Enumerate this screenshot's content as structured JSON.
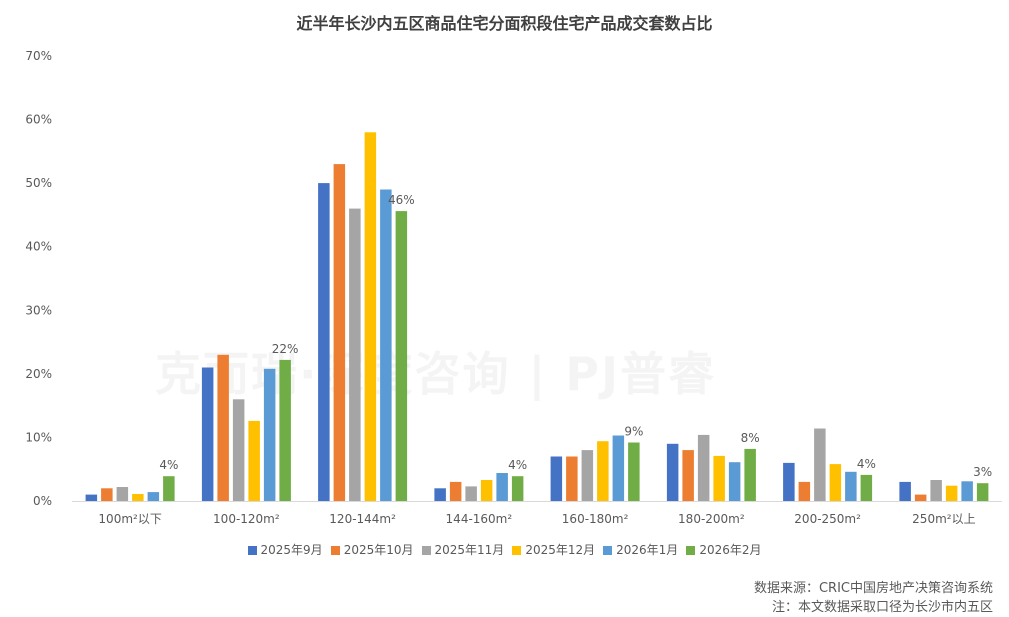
{
  "title": "近半年长沙内五区商品住宅分面积段住宅产品成交套数占比",
  "watermark": "克而瑞·深度咨询 | PJ普睿",
  "source": {
    "line1": "数据来源：CRIC中国房地产决策咨询系统",
    "line2": "注：本文数据采取口径为长沙市内五区"
  },
  "chart_data": {
    "type": "bar",
    "categories": [
      "100m²以下",
      "100-120m²",
      "120-144m²",
      "144-160m²",
      "160-180m²",
      "180-200m²",
      "200-250m²",
      "250m²以上"
    ],
    "ylim": [
      0,
      70
    ],
    "yticks": [
      0,
      10,
      20,
      30,
      40,
      50,
      60,
      70
    ],
    "ytick_labels": [
      "0%",
      "10%",
      "20%",
      "30%",
      "40%",
      "50%",
      "60%",
      "70%"
    ],
    "legend_position": "bottom",
    "grid": false,
    "series": [
      {
        "name": "2025年9月",
        "color": "#4472C4",
        "values": [
          1,
          21,
          50,
          2,
          7,
          9,
          6,
          3
        ]
      },
      {
        "name": "2025年10月",
        "color": "#ED7D31",
        "values": [
          2,
          23,
          53,
          3,
          7,
          8,
          3,
          1
        ]
      },
      {
        "name": "2025年11月",
        "color": "#A5A5A5",
        "values": [
          2.2,
          16,
          46,
          2.3,
          8,
          10.4,
          11.4,
          3.3
        ]
      },
      {
        "name": "2025年12月",
        "color": "#FFC000",
        "values": [
          1.1,
          12.6,
          58,
          3.3,
          9.4,
          7.1,
          5.8,
          2.4
        ]
      },
      {
        "name": "2026年1月",
        "color": "#5B9BD5",
        "values": [
          1.4,
          20.8,
          49,
          4.4,
          10.3,
          6.1,
          4.6,
          3.1
        ]
      },
      {
        "name": "2026年2月",
        "color": "#70AD47",
        "values": [
          3.9,
          22.2,
          45.6,
          3.9,
          9.2,
          8.2,
          4.1,
          2.8
        ]
      }
    ],
    "data_labels": {
      "series": "2026年2月",
      "labels": [
        "4%",
        "22%",
        "46%",
        "4%",
        "9%",
        "8%",
        "4%",
        "3%"
      ]
    }
  }
}
